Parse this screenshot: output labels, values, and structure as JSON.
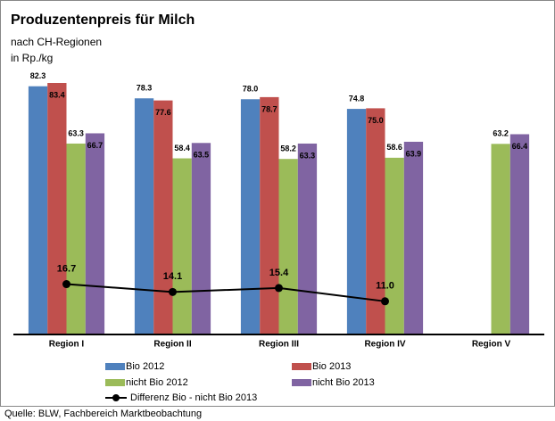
{
  "chart_data": {
    "type": "bar",
    "title": "Produzentenpreis für Milch",
    "subtitle": "nach CH-Regionen",
    "y_label": "in Rp./kg",
    "source": "Quelle: BLW, Fachbereich Marktbeobachtung",
    "categories": [
      "Region I",
      "Region II",
      "Region III",
      "Region IV",
      "Region V"
    ],
    "series": [
      {
        "name": "Bio 2012",
        "color": "#4f81bd",
        "values": [
          82.3,
          78.3,
          78.0,
          74.8,
          null
        ],
        "value_labels": [
          "82.3",
          "78.3",
          "78.0",
          "74.8",
          null
        ]
      },
      {
        "name": "Bio 2013",
        "color": "#c0504d",
        "values": [
          83.4,
          77.6,
          78.7,
          75.0,
          null
        ],
        "value_labels": [
          "83.4",
          "77.6",
          "78.7",
          "75.0",
          null
        ]
      },
      {
        "name": "nicht Bio 2012",
        "color": "#9bbb59",
        "values": [
          63.3,
          58.4,
          58.2,
          58.6,
          63.2
        ],
        "value_labels": [
          "63.3",
          "58.4",
          "58.2",
          "58.6",
          "63.2"
        ]
      },
      {
        "name": "nicht Bio 2013",
        "color": "#8064a2",
        "values": [
          66.7,
          63.5,
          63.3,
          63.9,
          66.4
        ],
        "value_labels": [
          "66.7",
          "63.5",
          "63.3",
          "63.9",
          "66.4"
        ]
      },
      {
        "name": "Differenz Bio - nicht Bio 2013",
        "color": "#000000",
        "type": "line",
        "values": [
          16.7,
          14.1,
          15.4,
          11.0,
          null
        ],
        "value_labels": [
          "16.7",
          "14.1",
          "15.4",
          "11.0",
          null
        ]
      }
    ]
  }
}
